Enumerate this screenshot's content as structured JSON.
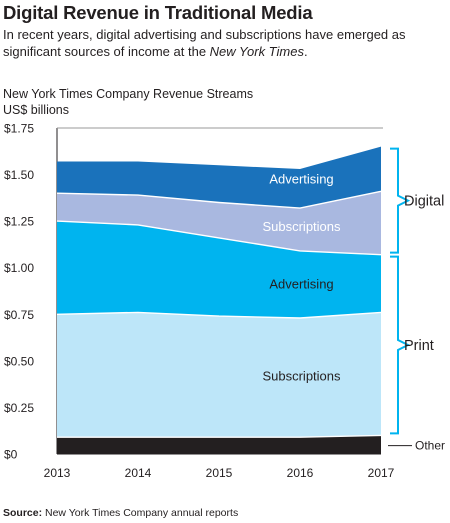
{
  "page": {
    "title": "Digital Revenue in Traditional Media",
    "subtitle_before": "In recent years, digital advertising and subscriptions have emerged as significant sources of income at the ",
    "subtitle_italic": "New York Times",
    "subtitle_after": ".",
    "source_label": "Source:",
    "source_text": " New York Times Company annual reports"
  },
  "chart_data": {
    "type": "area",
    "stacked": true,
    "title": "New York Times Company Revenue Streams",
    "ylabel": "US$ billions",
    "xlabel": "",
    "x": [
      "2013",
      "2014",
      "2015",
      "2016",
      "2017"
    ],
    "ylim": [
      0,
      1.75
    ],
    "yticks": [
      0,
      0.25,
      0.5,
      0.75,
      1.0,
      1.25,
      1.5,
      1.75
    ],
    "ytick_labels": [
      "$0",
      "$0.25",
      "$0.50",
      "$0.75",
      "$1.00",
      "$1.25",
      "$1.50",
      "$1.75"
    ],
    "grid": false,
    "series": [
      {
        "name": "Other",
        "group": "",
        "label": "Other",
        "color": "#231f20",
        "values": [
          0.09,
          0.09,
          0.09,
          0.09,
          0.1
        ]
      },
      {
        "name": "Print Subscriptions",
        "group": "Print",
        "label": "Subscriptions",
        "color": "#bde6f9",
        "values": [
          0.66,
          0.67,
          0.65,
          0.64,
          0.66
        ]
      },
      {
        "name": "Print Advertising",
        "group": "Print",
        "label": "Advertising",
        "color": "#00b4ef",
        "values": [
          0.5,
          0.47,
          0.42,
          0.36,
          0.31
        ]
      },
      {
        "name": "Digital Subscriptions",
        "group": "Digital",
        "label": "Subscriptions",
        "color": "#a9b8e0",
        "values": [
          0.15,
          0.16,
          0.19,
          0.23,
          0.34
        ]
      },
      {
        "name": "Digital Advertising",
        "group": "Digital",
        "label": "Advertising",
        "color": "#1a72bb",
        "values": [
          0.17,
          0.18,
          0.2,
          0.21,
          0.24
        ]
      }
    ],
    "groups": [
      {
        "name": "Digital",
        "series": [
          "Digital Subscriptions",
          "Digital Advertising"
        ]
      },
      {
        "name": "Print",
        "series": [
          "Print Subscriptions",
          "Print Advertising"
        ]
      }
    ]
  }
}
